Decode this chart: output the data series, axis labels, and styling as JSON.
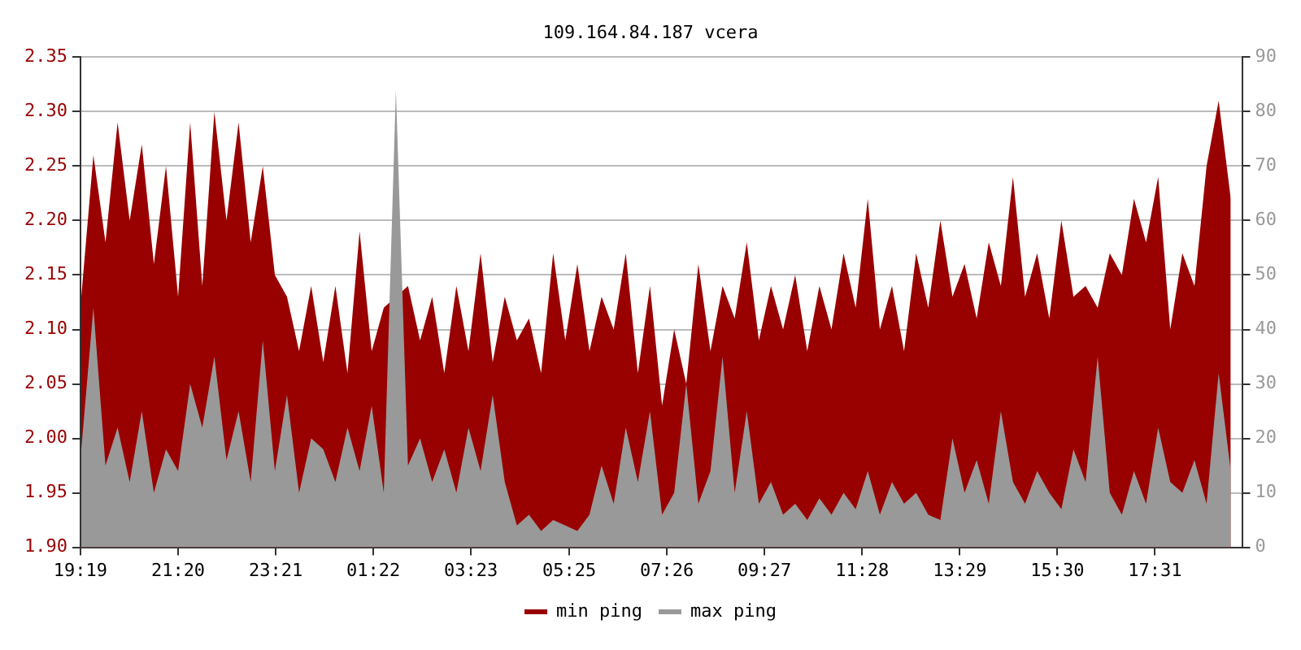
{
  "chart_data": {
    "type": "area",
    "title": "109.164.84.187 vcera",
    "x": [
      "--01-01T19:20",
      "--01-01T19:35",
      "--01-01T19:50",
      "--01-01T20:05",
      "--01-01T20:20",
      "--01-01T20:35",
      "--01-01T20:50",
      "--01-01T21:05",
      "--01-01T21:20",
      "--01-01T21:35",
      "--01-01T21:50",
      "--01-01T22:05",
      "--01-01T22:20",
      "--01-01T22:35",
      "--01-01T22:50",
      "--01-01T23:05",
      "--01-01T23:20",
      "--01-01T23:35",
      "--01-01T23:50",
      "--01-02T00:05",
      "--01-02T00:20",
      "--01-02T00:35",
      "--01-02T00:50",
      "--01-02T01:05",
      "--01-02T01:20",
      "--01-02T01:35",
      "--01-02T01:50",
      "--01-02T02:05",
      "--01-02T02:20",
      "--01-02T02:35",
      "--01-02T02:50",
      "--01-02T03:05",
      "--01-02T03:20",
      "--01-02T03:35",
      "--01-02T03:50",
      "--01-02T04:05",
      "--01-02T04:20",
      "--01-02T04:35",
      "--01-02T04:50",
      "--01-02T05:05",
      "--01-02T05:20",
      "--01-02T05:35",
      "--01-02T05:50",
      "--01-02T06:05",
      "--01-02T06:20",
      "--01-02T06:35",
      "--01-02T06:50",
      "--01-02T07:05",
      "--01-02T07:20",
      "--01-02T07:35",
      "--01-02T07:50",
      "--01-02T08:05",
      "--01-02T08:20",
      "--01-02T08:35",
      "--01-02T08:50",
      "--01-02T09:05",
      "--01-02T09:20",
      "--01-02T09:35",
      "--01-02T09:50",
      "--01-02T10:05",
      "--01-02T10:20",
      "--01-02T10:35",
      "--01-02T10:50",
      "--01-02T11:05",
      "--01-02T11:20",
      "--01-02T11:35",
      "--01-02T11:50",
      "--01-02T12:05",
      "--01-02T12:20",
      "--01-02T12:35",
      "--01-02T12:50",
      "--01-02T13:05",
      "--01-02T13:20",
      "--01-02T13:35",
      "--01-02T13:50",
      "--01-02T14:05",
      "--01-02T14:20",
      "--01-02T14:35",
      "--01-02T14:50",
      "--01-02T15:05",
      "--01-02T15:20",
      "--01-02T15:35",
      "--01-02T15:50",
      "--01-02T16:05",
      "--01-02T16:20",
      "--01-02T16:35",
      "--01-02T16:50",
      "--01-02T17:05",
      "--01-02T17:20",
      "--01-02T17:35",
      "--01-02T17:50",
      "--01-02T18:05",
      "--01-02T18:20",
      "--01-02T18:35",
      "--01-02T18:50",
      "--01-02T19:05"
    ],
    "series": [
      {
        "name": "min ping",
        "color": "#990000",
        "values": [
          2.13,
          2.26,
          2.18,
          2.29,
          2.2,
          2.27,
          2.16,
          2.25,
          2.13,
          2.29,
          2.14,
          2.3,
          2.2,
          2.29,
          2.18,
          2.25,
          2.15,
          2.13,
          2.08,
          2.14,
          2.07,
          2.14,
          2.06,
          2.19,
          2.08,
          2.12,
          null,
          2.14,
          2.09,
          2.13,
          2.06,
          2.14,
          2.08,
          2.17,
          2.07,
          2.13,
          2.09,
          2.11,
          2.06,
          2.17,
          2.09,
          2.16,
          2.08,
          2.13,
          2.1,
          2.17,
          2.06,
          2.14,
          2.03,
          2.1,
          2.05,
          2.16,
          2.08,
          2.14,
          2.11,
          2.18,
          2.09,
          2.14,
          2.1,
          2.15,
          2.08,
          2.14,
          2.1,
          2.17,
          2.12,
          2.22,
          2.1,
          2.14,
          2.08,
          2.17,
          2.12,
          2.2,
          2.13,
          2.16,
          2.11,
          2.18,
          2.14,
          2.24,
          2.13,
          2.17,
          2.11,
          2.2,
          2.13,
          2.14,
          2.12,
          2.17,
          2.15,
          2.22,
          2.18,
          2.24,
          2.1,
          2.17,
          2.14,
          2.25,
          2.31,
          2.22
        ]
      },
      {
        "name": "max ping",
        "color": "#999999",
        "axis": "y2",
        "values": [
          18,
          44,
          15,
          22,
          12,
          25,
          10,
          18,
          14,
          30,
          22,
          35,
          16,
          25,
          12,
          38,
          14,
          28,
          10,
          20,
          18,
          12,
          22,
          14,
          26,
          10,
          84,
          15,
          20,
          12,
          18,
          10,
          22,
          14,
          28,
          12,
          4,
          6,
          3,
          5,
          4,
          3,
          6,
          15,
          8,
          22,
          12,
          25,
          6,
          10,
          30,
          8,
          14,
          35,
          10,
          25,
          8,
          12,
          6,
          8,
          5,
          9,
          6,
          10,
          7,
          14,
          6,
          12,
          8,
          10,
          6,
          5,
          20,
          10,
          16,
          8,
          25,
          12,
          8,
          14,
          10,
          7,
          18,
          12,
          35,
          10,
          6,
          14,
          8,
          22,
          12,
          10,
          16,
          8,
          32,
          14
        ]
      }
    ],
    "xlim": [
      "--01-01T19:19",
      "--01-02T19:19"
    ],
    "xticks": [
      {
        "value": "--01-01T19:19",
        "label": "19:19"
      },
      {
        "value": "--01-01T21:20",
        "label": "21:20"
      },
      {
        "value": "--01-01T23:21",
        "label": "23:21"
      },
      {
        "value": "--01-02T01:22",
        "label": "01:22"
      },
      {
        "value": "--01-02T03:23",
        "label": "03:23"
      },
      {
        "value": "--01-02T05:25",
        "label": "05:25"
      },
      {
        "value": "--01-02T07:26",
        "label": "07:26"
      },
      {
        "value": "--01-02T09:27",
        "label": "09:27"
      },
      {
        "value": "--01-02T11:28",
        "label": "11:28"
      },
      {
        "value": "--01-02T13:29",
        "label": "13:29"
      },
      {
        "value": "--01-02T15:30",
        "label": "15:30"
      },
      {
        "value": "--01-02T17:31",
        "label": "17:31"
      }
    ],
    "ylim": [
      1.9,
      2.35
    ],
    "yticks": [
      {
        "value": 1.9,
        "label": "1.90"
      },
      {
        "value": 1.95,
        "label": "1.95"
      },
      {
        "value": 2.0,
        "label": "2.00"
      },
      {
        "value": 2.05,
        "label": "2.05"
      },
      {
        "value": 2.1,
        "label": "2.10"
      },
      {
        "value": 2.15,
        "label": "2.15"
      },
      {
        "value": 2.2,
        "label": "2.20"
      },
      {
        "value": 2.25,
        "label": "2.25"
      },
      {
        "value": 2.3,
        "label": "2.30"
      },
      {
        "value": 2.35,
        "label": "2.35"
      }
    ],
    "y2lim": [
      0,
      90
    ],
    "y2ticks": [
      0,
      10,
      20,
      30,
      40,
      50,
      60,
      70,
      80,
      90
    ],
    "grid": "y",
    "legend": "bottom",
    "marker": "none"
  }
}
